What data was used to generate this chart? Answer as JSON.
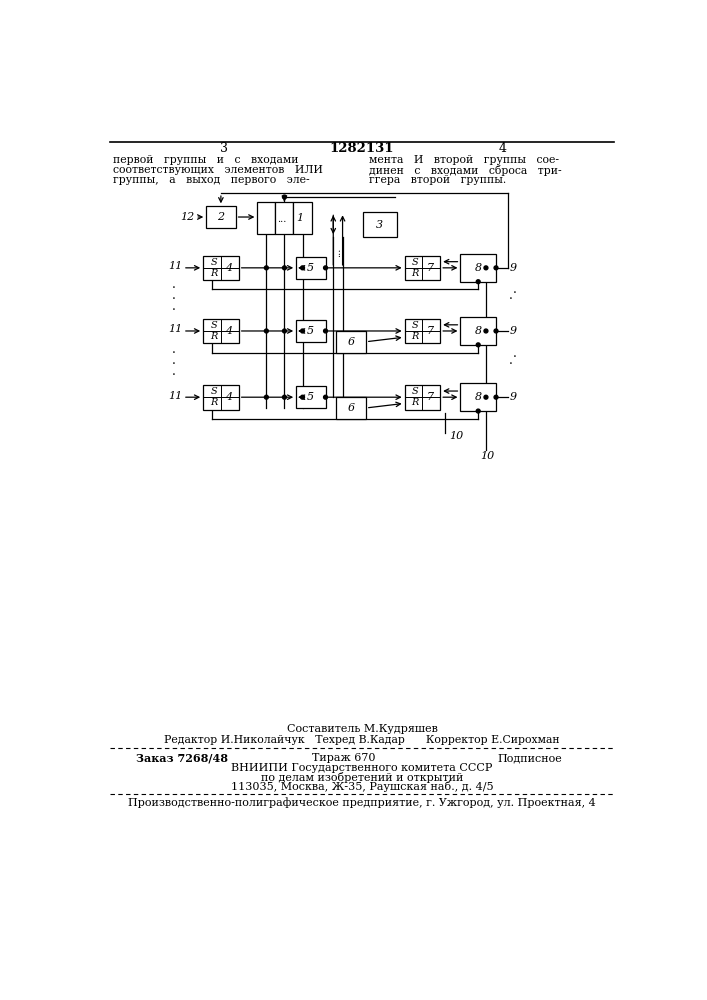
{
  "page_number_left": "3",
  "patent_number": "1282131",
  "page_number_right": "4",
  "header_left_line1": "первой   группы   и   с   входами",
  "header_left_line2": "соответствующих   элементов   ИЛИ",
  "header_left_line3": "группы,   а   выход   первого   эле-",
  "header_right_line1": "мента   И   второй   группы   сое-",
  "header_right_line2": "динен   с   входами   сброса   три-",
  "header_right_line3": "ггера   второй   группы.",
  "footer_compiler": "Составитель М.Кудряшев",
  "footer_editor": "Редактор И.Николайчук   Техред В.Кадар      Корректор Е.Сирохман",
  "footer_order": "Заказ 7268/48",
  "footer_print": "Тираж 670",
  "footer_subscription": "Подписное",
  "footer_org1": "ВНИИПИ Государственного комитета СССР",
  "footer_org2": "по делам изобретений и открытий",
  "footer_org3": "113035, Москва, Ж-35, Раушская наб., д. 4/5",
  "footer_bottom": "Производственно-полиграфическое предприятие, г. Ужгород, ул. Проектная, 4"
}
